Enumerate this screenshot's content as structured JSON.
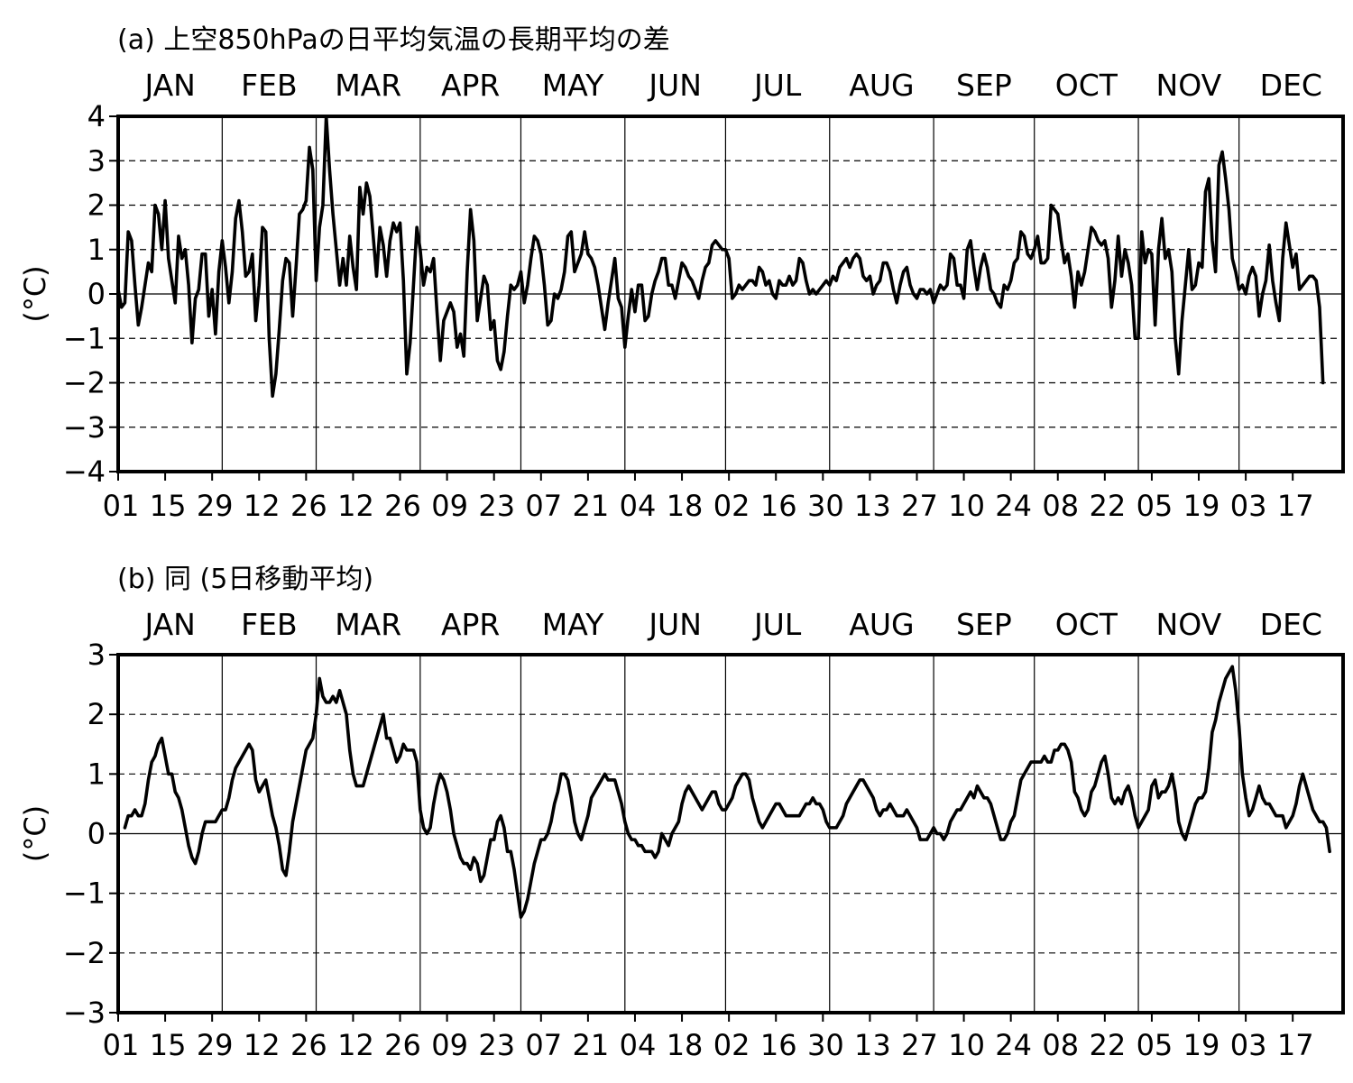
{
  "chart_data": [
    {
      "type": "line",
      "title": "(a) 上空850hPaの日平均気温の長期平均の差",
      "ylabel": "(°C)",
      "month_labels": [
        "JAN",
        "FEB",
        "MAR",
        "APR",
        "MAY",
        "JUN",
        "JUL",
        "AUG",
        "SEP",
        "OCT",
        "NOV",
        "DEC"
      ],
      "xtick_labels": [
        "01",
        "15",
        "29",
        "12",
        "26",
        "12",
        "26",
        "09",
        "23",
        "07",
        "21",
        "04",
        "18",
        "02",
        "16",
        "30",
        "13",
        "27",
        "10",
        "24",
        "08",
        "22",
        "05",
        "19",
        "03",
        "17"
      ],
      "yticks": [
        -4,
        -3,
        -2,
        -1,
        0,
        1,
        2,
        3,
        4
      ],
      "ylim": [
        -4,
        4
      ],
      "grid": "dashed horizontal at 1 °C steps, vertical lines at month boundaries",
      "series": [
        {
          "values": [
            0.1,
            -0.3,
            -0.2,
            1.4,
            1.2,
            0.2,
            -0.7,
            -0.3,
            0.2,
            0.7,
            0.5,
            2.0,
            1.8,
            1.0,
            2.1,
            0.8,
            0.3,
            -0.2,
            1.3,
            0.8,
            1.0,
            0.2,
            -1.1,
            -0.1,
            0.1,
            0.9,
            0.9,
            -0.5,
            0.1,
            -0.9,
            0.5,
            1.2,
            0.6,
            -0.2,
            0.5,
            1.7,
            2.1,
            1.4,
            0.4,
            0.5,
            0.9,
            -0.6,
            0.2,
            1.5,
            1.4,
            -1.0,
            -2.3,
            -1.8,
            -0.8,
            0.3,
            0.8,
            0.7,
            -0.5,
            0.6,
            1.8,
            1.9,
            2.1,
            3.3,
            2.8,
            0.3,
            1.5,
            2.0,
            4.0,
            2.8,
            1.8,
            1.0,
            0.2,
            0.8,
            0.2,
            1.3,
            0.6,
            0.1,
            2.4,
            1.8,
            2.5,
            2.2,
            1.3,
            0.4,
            1.5,
            1.1,
            0.4,
            1.2,
            1.6,
            1.4,
            1.6,
            0.3,
            -1.8,
            -1.1,
            0.2,
            1.5,
            1.0,
            0.2,
            0.6,
            0.5,
            0.8,
            -0.4,
            -1.5,
            -0.6,
            -0.4,
            -0.2,
            -0.4,
            -1.2,
            -0.9,
            -1.4,
            0.5,
            1.9,
            1.2,
            -0.6,
            -0.1,
            0.4,
            0.2,
            -0.8,
            -0.6,
            -1.5,
            -1.7,
            -1.3,
            -0.5,
            0.2,
            0.1,
            0.2,
            0.5,
            -0.2,
            0.2,
            0.8,
            1.3,
            1.2,
            0.9,
            0.2,
            -0.7,
            -0.6,
            0.0,
            -0.1,
            0.1,
            0.5,
            1.3,
            1.4,
            0.5,
            0.7,
            0.9,
            1.4,
            0.9,
            0.8,
            0.6,
            0.2,
            -0.3,
            -0.8,
            -0.2,
            0.3,
            0.8,
            -0.1,
            -0.3,
            -1.2,
            -0.5,
            0.1,
            -0.4,
            0.2,
            0.2,
            -0.6,
            -0.5,
            0.0,
            0.3,
            0.5,
            0.8,
            0.8,
            0.2,
            0.2,
            -0.1,
            0.3,
            0.7,
            0.6,
            0.4,
            0.3,
            0.1,
            -0.1,
            0.3,
            0.6,
            0.7,
            1.1,
            1.2,
            1.1,
            1.0,
            1.0,
            0.8,
            -0.1,
            0.0,
            0.2,
            0.1,
            0.2,
            0.3,
            0.3,
            0.2,
            0.6,
            0.5,
            0.2,
            0.3,
            0.0,
            -0.1,
            0.3,
            0.2,
            0.2,
            0.4,
            0.2,
            0.3,
            0.8,
            0.7,
            0.3,
            0.0,
            0.1,
            0.0,
            0.1,
            0.2,
            0.3,
            0.2,
            0.4,
            0.3,
            0.6,
            0.7,
            0.8,
            0.6,
            0.8,
            0.9,
            0.8,
            0.4,
            0.3,
            0.4,
            0.0,
            0.2,
            0.3,
            0.7,
            0.7,
            0.5,
            0.1,
            -0.2,
            0.2,
            0.5,
            0.6,
            0.2,
            0.0,
            -0.1,
            0.1,
            0.1,
            0.0,
            0.1,
            -0.2,
            0.0,
            0.2,
            0.1,
            0.2,
            0.9,
            0.8,
            0.2,
            0.2,
            -0.1,
            1.0,
            1.2,
            0.6,
            0.1,
            0.6,
            0.9,
            0.6,
            0.1,
            0.0,
            -0.2,
            -0.3,
            0.2,
            0.1,
            0.3,
            0.7,
            0.8,
            1.4,
            1.3,
            0.9,
            0.8,
            1.0,
            1.3,
            0.7,
            0.7,
            0.8,
            2.0,
            1.9,
            1.8,
            1.2,
            0.7,
            0.9,
            0.4,
            -0.3,
            0.5,
            0.2,
            0.5,
            1.0,
            1.5,
            1.4,
            1.2,
            1.1,
            1.2,
            0.8,
            -0.3,
            0.3,
            1.3,
            0.4,
            1.0,
            0.7,
            0.2,
            -1.0,
            -1.0,
            1.4,
            0.7,
            1.0,
            0.9,
            -0.7,
            1.0,
            1.7,
            0.8,
            1.0,
            0.5,
            -1.0,
            -1.8,
            -0.6,
            0.2,
            1.0,
            0.1,
            0.2,
            0.7,
            0.6,
            2.3,
            2.6,
            1.2,
            0.5,
            2.9,
            3.2,
            2.6,
            1.9,
            0.8,
            0.5,
            0.1,
            0.2,
            0.0,
            0.4,
            0.6,
            0.4,
            -0.5,
            0.0,
            0.3,
            1.1,
            0.3,
            -0.2,
            -0.6,
            0.8,
            1.6,
            1.1,
            0.6,
            0.9,
            0.1,
            0.2,
            0.3,
            0.4,
            0.4,
            0.3,
            -0.3,
            -2.0
          ]
        }
      ]
    },
    {
      "type": "line",
      "title": "(b) 同 (5日移動平均)",
      "ylabel": "(°C)",
      "month_labels": [
        "JAN",
        "FEB",
        "MAR",
        "APR",
        "MAY",
        "JUN",
        "JUL",
        "AUG",
        "SEP",
        "OCT",
        "NOV",
        "DEC"
      ],
      "xtick_labels": [
        "01",
        "15",
        "29",
        "12",
        "26",
        "12",
        "26",
        "09",
        "23",
        "07",
        "21",
        "04",
        "18",
        "02",
        "16",
        "30",
        "13",
        "27",
        "10",
        "24",
        "08",
        "22",
        "05",
        "19",
        "03",
        "17"
      ],
      "yticks": [
        -3,
        -2,
        -1,
        0,
        1,
        2,
        3
      ],
      "ylim": [
        -3,
        3
      ],
      "grid": "dashed horizontal at 1 °C steps, vertical lines at month boundaries",
      "series": [
        {
          "x_start": 3,
          "values": [
            0.1,
            0.3,
            0.3,
            0.4,
            0.3,
            0.3,
            0.5,
            0.9,
            1.2,
            1.3,
            1.5,
            1.6,
            1.3,
            1.0,
            1.0,
            0.7,
            0.6,
            0.4,
            0.1,
            -0.2,
            -0.4,
            -0.5,
            -0.3,
            0.0,
            0.2,
            0.2,
            0.2,
            0.2,
            0.3,
            0.4,
            0.4,
            0.6,
            0.9,
            1.1,
            1.2,
            1.3,
            1.4,
            1.5,
            1.4,
            0.9,
            0.7,
            0.8,
            0.9,
            0.6,
            0.3,
            0.1,
            -0.2,
            -0.6,
            -0.7,
            -0.3,
            0.2,
            0.5,
            0.8,
            1.1,
            1.4,
            1.5,
            1.6,
            2.0,
            2.6,
            2.3,
            2.2,
            2.2,
            2.3,
            2.2,
            2.4,
            2.2,
            2.0,
            1.4,
            1.0,
            0.8,
            0.8,
            0.8,
            1.0,
            1.2,
            1.4,
            1.6,
            1.8,
            2.0,
            1.6,
            1.6,
            1.4,
            1.2,
            1.3,
            1.5,
            1.4,
            1.4,
            1.4,
            1.2,
            0.4,
            0.1,
            0.0,
            0.1,
            0.5,
            0.8,
            1.0,
            0.9,
            0.7,
            0.4,
            0.0,
            -0.2,
            -0.4,
            -0.5,
            -0.5,
            -0.6,
            -0.4,
            -0.5,
            -0.8,
            -0.7,
            -0.4,
            -0.1,
            -0.1,
            0.2,
            0.3,
            0.1,
            -0.3,
            -0.3,
            -0.6,
            -1.0,
            -1.4,
            -1.3,
            -1.1,
            -0.8,
            -0.5,
            -0.3,
            -0.1,
            -0.1,
            0.0,
            0.2,
            0.5,
            0.7,
            1.0,
            1.0,
            0.9,
            0.6,
            0.2,
            0.0,
            -0.1,
            0.1,
            0.3,
            0.6,
            0.7,
            0.8,
            0.9,
            1.0,
            0.9,
            0.9,
            0.9,
            0.7,
            0.5,
            0.2,
            0.0,
            -0.1,
            -0.1,
            -0.2,
            -0.2,
            -0.3,
            -0.3,
            -0.3,
            -0.4,
            -0.3,
            0.0,
            -0.1,
            -0.2,
            0.0,
            0.1,
            0.2,
            0.5,
            0.7,
            0.8,
            0.7,
            0.6,
            0.5,
            0.4,
            0.5,
            0.6,
            0.7,
            0.7,
            0.5,
            0.4,
            0.4,
            0.5,
            0.6,
            0.8,
            0.9,
            1.0,
            1.0,
            0.9,
            0.6,
            0.4,
            0.2,
            0.1,
            0.2,
            0.3,
            0.4,
            0.5,
            0.5,
            0.4,
            0.3,
            0.3,
            0.3,
            0.3,
            0.3,
            0.4,
            0.5,
            0.5,
            0.6,
            0.5,
            0.5,
            0.4,
            0.2,
            0.1,
            0.1,
            0.1,
            0.2,
            0.3,
            0.5,
            0.6,
            0.7,
            0.8,
            0.9,
            0.9,
            0.8,
            0.7,
            0.6,
            0.4,
            0.3,
            0.4,
            0.4,
            0.5,
            0.4,
            0.3,
            0.3,
            0.3,
            0.4,
            0.3,
            0.2,
            0.1,
            -0.1,
            -0.1,
            -0.1,
            0.0,
            0.1,
            0.0,
            0.0,
            -0.1,
            0.0,
            0.2,
            0.3,
            0.4,
            0.4,
            0.5,
            0.6,
            0.7,
            0.6,
            0.8,
            0.7,
            0.6,
            0.6,
            0.5,
            0.3,
            0.1,
            -0.1,
            -0.1,
            0.0,
            0.2,
            0.3,
            0.6,
            0.9,
            1.0,
            1.1,
            1.2,
            1.2,
            1.2,
            1.2,
            1.3,
            1.2,
            1.2,
            1.4,
            1.4,
            1.5,
            1.5,
            1.4,
            1.2,
            0.7,
            0.6,
            0.4,
            0.3,
            0.4,
            0.7,
            0.8,
            1.0,
            1.2,
            1.3,
            1.0,
            0.6,
            0.5,
            0.6,
            0.5,
            0.7,
            0.8,
            0.6,
            0.3,
            0.1,
            0.2,
            0.3,
            0.4,
            0.8,
            0.9,
            0.6,
            0.7,
            0.7,
            0.8,
            1.0,
            0.7,
            0.2,
            0.0,
            -0.1,
            0.1,
            0.3,
            0.5,
            0.6,
            0.6,
            0.7,
            1.1,
            1.7,
            1.9,
            2.2,
            2.4,
            2.6,
            2.7,
            2.8,
            2.4,
            1.8,
            1.0,
            0.6,
            0.3,
            0.4,
            0.6,
            0.8,
            0.6,
            0.5,
            0.5,
            0.4,
            0.3,
            0.3,
            0.3,
            0.1,
            0.2,
            0.3,
            0.5,
            0.8,
            1.0,
            0.8,
            0.6,
            0.4,
            0.3,
            0.2,
            0.2,
            0.1,
            -0.3
          ]
        }
      ]
    }
  ]
}
